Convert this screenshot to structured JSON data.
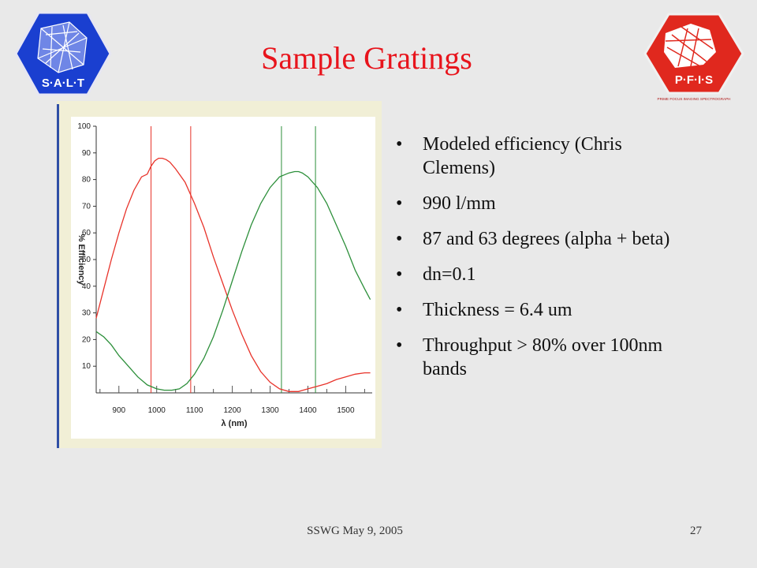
{
  "slide": {
    "title": "Sample Gratings",
    "bullets": [
      "Modeled efficiency (Chris Clemens)",
      "990 l/mm",
      "87 and 63 degrees (alpha + beta)",
      "dn=0.1",
      "Thickness = 6.4 um",
      "Throughput > 80% over 100nm bands"
    ],
    "footer": "SSWG  May 9, 2005",
    "page_number": "27"
  },
  "logos": {
    "left": {
      "text": "S·A·L·T",
      "color": "#1a3fd0",
      "icon": "salt-telescope-hexagon-icon"
    },
    "right": {
      "text": "P·F·I·S",
      "subtext": "PRIME FOCUS IMAGING SPECTROGRAPH",
      "color": "#e0281e",
      "icon": "pfis-instrument-hexagon-icon"
    }
  },
  "colors": {
    "title": "#e8141c",
    "series_red": "#e8332a",
    "series_green": "#2c8f3a",
    "chart_background": "#f1efd6",
    "accent_bar": "#2f4fa6"
  },
  "chart_data": {
    "type": "line",
    "xlabel": "λ (nm)",
    "ylabel": "% Efficiency",
    "xlim": [
      840,
      1570
    ],
    "ylim": [
      0,
      100
    ],
    "x_ticks": [
      900,
      1000,
      1100,
      1200,
      1300,
      1400,
      1500
    ],
    "y_ticks": [
      10,
      20,
      30,
      40,
      50,
      60,
      70,
      80,
      90,
      100
    ],
    "grid": false,
    "series": [
      {
        "color": "#e8332a",
        "x": [
          840,
          860,
          880,
          900,
          920,
          940,
          960,
          975,
          985,
          995,
          1005,
          1015,
          1025,
          1035,
          1050,
          1075,
          1100,
          1125,
          1150,
          1175,
          1200,
          1225,
          1250,
          1275,
          1300,
          1325,
          1350,
          1375,
          1400,
          1425,
          1450,
          1475,
          1500,
          1525,
          1550,
          1565
        ],
        "y": [
          28,
          39,
          50,
          60,
          69,
          76,
          81,
          82,
          85,
          87,
          88,
          88,
          87.5,
          86.5,
          84,
          79,
          71,
          62,
          51,
          41,
          31,
          22,
          14,
          8,
          4,
          1.5,
          0.5,
          0.5,
          1.5,
          2.5,
          3.5,
          5,
          6,
          7,
          7.5,
          7.5
        ]
      },
      {
        "color": "#2c8f3a",
        "x": [
          840,
          860,
          880,
          900,
          925,
          950,
          975,
          1000,
          1020,
          1040,
          1060,
          1080,
          1100,
          1125,
          1150,
          1175,
          1200,
          1225,
          1250,
          1275,
          1300,
          1325,
          1350,
          1365,
          1375,
          1385,
          1400,
          1425,
          1450,
          1475,
          1500,
          1525,
          1550,
          1565
        ],
        "y": [
          23,
          21,
          18,
          14,
          10,
          6,
          3,
          1.5,
          1,
          1,
          1.5,
          3.5,
          7,
          13,
          21,
          31,
          42,
          53,
          63,
          71,
          77,
          81,
          82.5,
          83,
          83,
          82.5,
          81,
          77,
          71,
          63,
          55,
          46,
          39,
          35
        ]
      }
    ],
    "vertical_lines": [
      {
        "x": 985,
        "color": "#e8332a"
      },
      {
        "x": 1090,
        "color": "#e8332a"
      },
      {
        "x": 1330,
        "color": "#2c8f3a"
      },
      {
        "x": 1420,
        "color": "#2c8f3a"
      }
    ]
  }
}
